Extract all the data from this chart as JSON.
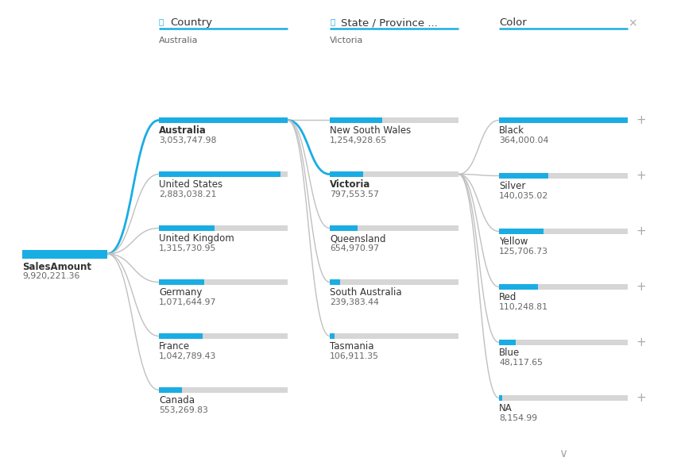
{
  "bg_color": "#ffffff",
  "blue": "#1aade3",
  "light_gray": "#d6d6d6",
  "dark_gray": "#666666",
  "text_color": "#333333",
  "lock_color": "#1aade3",
  "header_line_color": "#1aade3",
  "connector_color": "#1aade3",
  "connector_gray": "#c0c0c0",
  "col1_header": "Country",
  "col2_header": "State / Province ...",
  "col3_header": "Color",
  "col1_selected": "Australia",
  "col2_selected": "Victoria",
  "root_label": "SalesAmount",
  "root_value": "9,920,221.36",
  "col1_items": [
    {
      "name": "Australia",
      "value": "3,053,747.98",
      "ratio": 1.0,
      "bold": true
    },
    {
      "name": "United States",
      "value": "2,883,038.21",
      "ratio": 0.945
    },
    {
      "name": "United Kingdom",
      "value": "1,315,730.95",
      "ratio": 0.431
    },
    {
      "name": "Germany",
      "value": "1,071,644.97",
      "ratio": 0.351
    },
    {
      "name": "France",
      "value": "1,042,789.43",
      "ratio": 0.341
    },
    {
      "name": "Canada",
      "value": "553,269.83",
      "ratio": 0.181
    }
  ],
  "col2_items": [
    {
      "name": "New South Wales",
      "value": "1,254,928.65",
      "ratio": 0.41
    },
    {
      "name": "Victoria",
      "value": "797,553.57",
      "ratio": 0.61,
      "blue_ratio": 0.26,
      "bold": true,
      "partial": true
    },
    {
      "name": "Queensland",
      "value": "654,970.97",
      "ratio": 0.215
    },
    {
      "name": "South Australia",
      "value": "239,383.44",
      "ratio": 0.079
    },
    {
      "name": "Tasmania",
      "value": "106,911.35",
      "ratio": 0.035
    }
  ],
  "col3_items": [
    {
      "name": "Black",
      "value": "364,000.04",
      "ratio": 1.0,
      "plus": true
    },
    {
      "name": "Silver",
      "value": "140,035.02",
      "ratio": 0.385,
      "plus": true
    },
    {
      "name": "Yellow",
      "value": "125,706.73",
      "ratio": 0.346,
      "plus": true
    },
    {
      "name": "Red",
      "value": "110,248.81",
      "ratio": 0.303,
      "plus": true
    },
    {
      "name": "Blue",
      "value": "48,117.65",
      "ratio": 0.132,
      "plus": true
    },
    {
      "name": "NA",
      "value": "8,154.99",
      "ratio": 0.022,
      "plus": true
    }
  ],
  "figsize": [
    8.52,
    5.91
  ],
  "dpi": 100
}
